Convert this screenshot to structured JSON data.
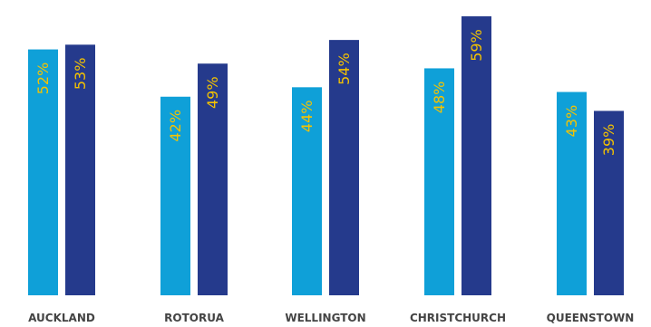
{
  "chart_data": {
    "type": "bar",
    "categories": [
      "AUCKLAND",
      "ROTORUA",
      "WELLINGTON",
      "CHRISTCHURCH",
      "QUEENSTOWN"
    ],
    "series": [
      {
        "values": [
          52,
          42,
          44,
          48,
          43
        ],
        "labels": [
          "52%",
          "42%",
          "44%",
          "48%",
          "43%"
        ],
        "color": "#0fa0d8"
      },
      {
        "values": [
          53,
          49,
          54,
          59,
          39
        ],
        "labels": [
          "53%",
          "49%",
          "54%",
          "59%",
          "39%"
        ],
        "color": "#253a8c"
      }
    ],
    "title": "",
    "xlabel": "",
    "ylabel": "",
    "ylim": [
      0,
      60
    ],
    "grid": false,
    "value_label_color": "#f5c300",
    "label_color": "#444444"
  }
}
